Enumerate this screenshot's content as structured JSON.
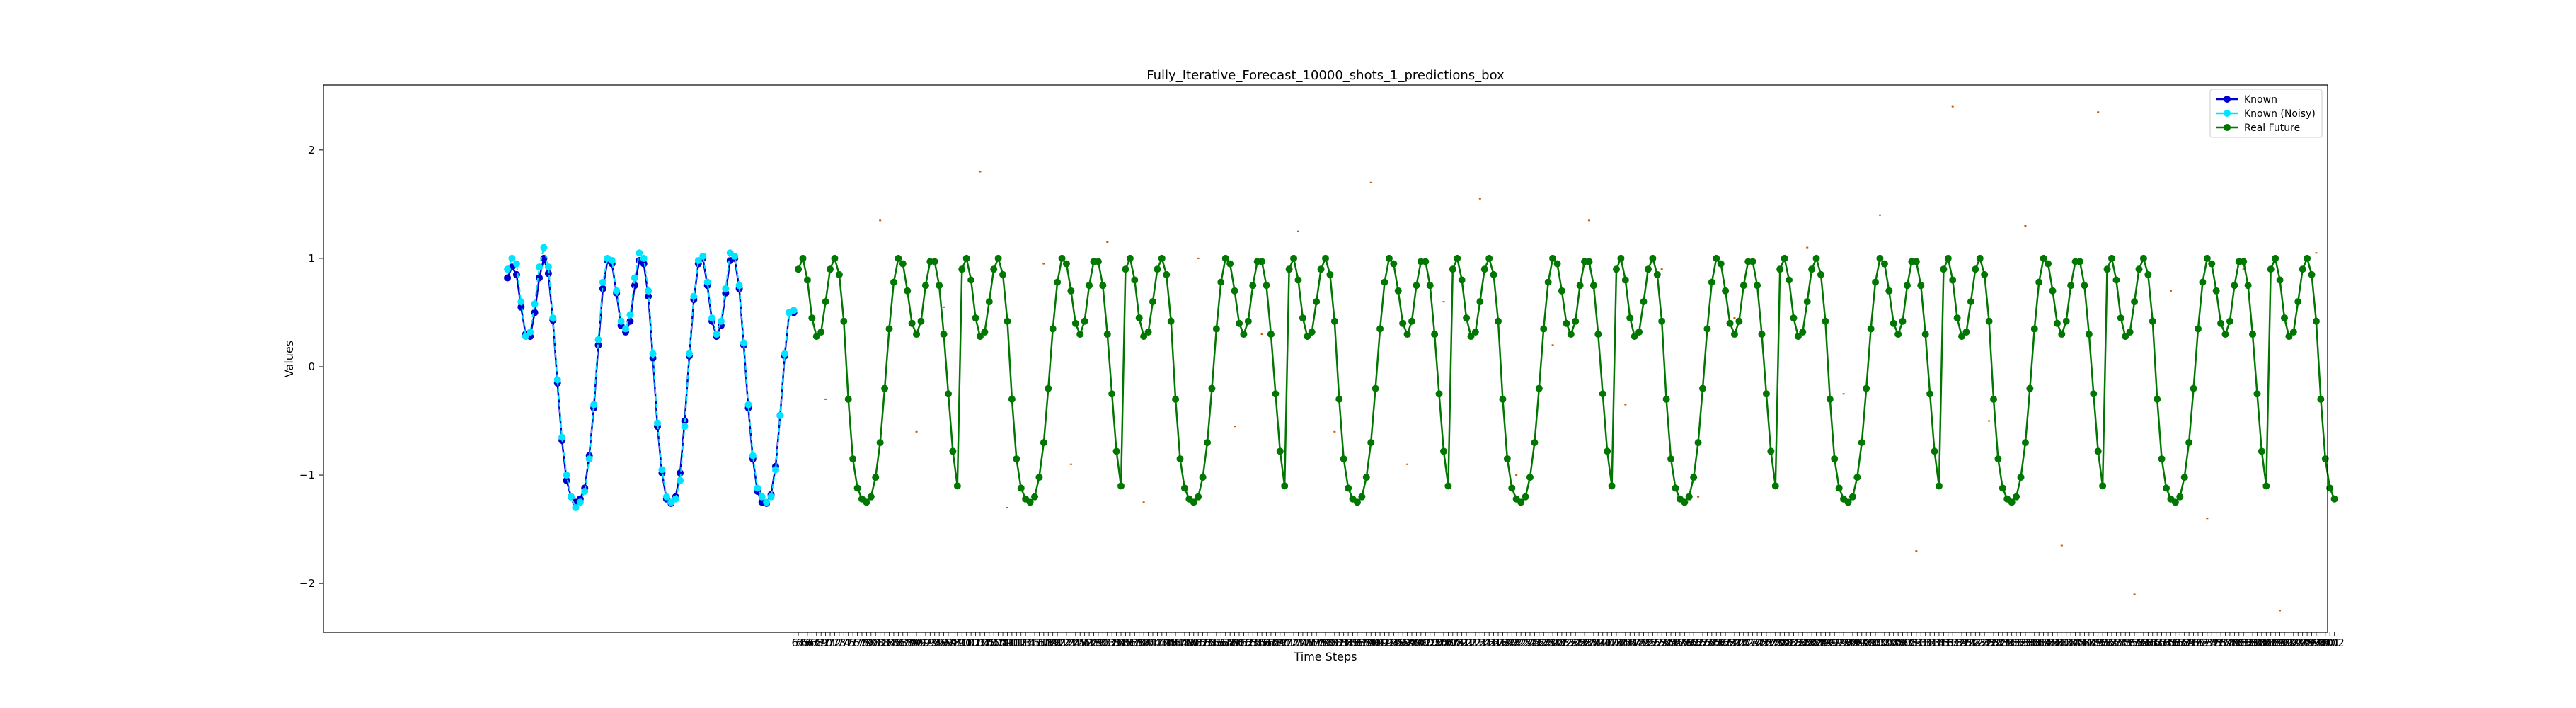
{
  "chart_data": {
    "type": "line",
    "title": "Fully_Iterative_Forecast_10000_shots_1_predictions_box",
    "xlabel": "Time Steps",
    "ylabel": "Values",
    "xlim": [
      -40.5,
      400.5
    ],
    "ylim": [
      -2.45,
      2.6
    ],
    "y_ticks": [
      -2,
      -1,
      0,
      1,
      2
    ],
    "x_tick_range": [
      64,
      402
    ],
    "grid": false,
    "legend_position": "top-right",
    "period_steps": 36,
    "known_range": [
      0,
      63
    ],
    "future_range": [
      64,
      402
    ],
    "known_values": [
      0.82,
      0.92,
      0.85,
      0.55,
      0.3,
      0.28,
      0.5,
      0.82,
      1.0,
      0.86,
      0.43,
      -0.15,
      -0.68,
      -1.05,
      -1.2,
      -1.25,
      -1.22,
      -1.12,
      -0.82,
      -0.38,
      0.2,
      0.72,
      0.98,
      0.95,
      0.68,
      0.38,
      0.32,
      0.42,
      0.75,
      0.98,
      0.95,
      0.65,
      0.08,
      -0.55,
      -0.98,
      -1.22,
      -1.26,
      -1.2,
      -0.98,
      -0.5,
      0.1,
      0.62,
      0.95,
      1.0,
      0.75,
      0.42,
      0.28,
      0.38,
      0.68,
      0.98,
      1.0,
      0.72,
      0.2,
      -0.38,
      -0.85,
      -1.15,
      -1.25,
      -1.26,
      -1.18,
      -0.92,
      -0.45,
      0.1,
      0.5,
      0.5
    ],
    "known_noisy_values": [
      0.9,
      1.0,
      0.95,
      0.6,
      0.28,
      0.32,
      0.58,
      0.92,
      1.1,
      0.92,
      0.45,
      -0.12,
      -0.65,
      -1.0,
      -1.2,
      -1.3,
      -1.25,
      -1.15,
      -0.85,
      -0.35,
      0.25,
      0.78,
      1.0,
      0.98,
      0.7,
      0.42,
      0.35,
      0.48,
      0.82,
      1.05,
      1.0,
      0.7,
      0.12,
      -0.52,
      -0.95,
      -1.2,
      -1.25,
      -1.22,
      -1.05,
      -0.55,
      0.12,
      0.65,
      0.98,
      1.02,
      0.78,
      0.45,
      0.3,
      0.42,
      0.72,
      1.05,
      1.02,
      0.75,
      0.22,
      -0.35,
      -0.82,
      -1.12,
      -1.2,
      -1.25,
      -1.2,
      -0.95,
      -0.45,
      0.12,
      0.5,
      0.52
    ],
    "real_future_pattern": [
      0.9,
      1.0,
      0.8,
      0.45,
      0.28,
      0.32,
      0.6,
      0.9,
      1.0,
      0.85,
      0.42,
      -0.3,
      -0.85,
      -1.12,
      -1.22,
      -1.25,
      -1.2,
      -1.02,
      -0.7,
      -0.2,
      0.35,
      0.78,
      1.0,
      0.95,
      0.7,
      0.4,
      0.3,
      0.42,
      0.75,
      0.97,
      0.97,
      0.75,
      0.3,
      -0.25,
      -0.78,
      -1.1
    ],
    "prediction_box_sample_x": [
      70,
      82,
      90,
      96,
      104,
      110,
      118,
      124,
      132,
      140,
      146,
      152,
      160,
      166,
      174,
      182,
      190,
      198,
      206,
      214,
      222,
      230,
      238,
      246,
      254,
      262,
      270,
      278,
      286,
      294,
      302,
      310,
      318,
      326,
      334,
      342,
      350,
      358,
      366,
      374,
      382,
      390,
      398
    ],
    "prediction_box_sample_y": [
      -0.3,
      1.35,
      -0.6,
      0.55,
      1.8,
      -1.3,
      0.95,
      -0.9,
      1.15,
      -1.25,
      0.45,
      1.0,
      -0.55,
      0.3,
      1.25,
      -0.6,
      1.7,
      -0.9,
      0.6,
      1.55,
      -1.0,
      0.2,
      1.35,
      -0.35,
      0.9,
      -1.2,
      0.45,
      -0.8,
      1.1,
      -0.25,
      1.4,
      -1.7,
      2.4,
      -0.5,
      1.3,
      -1.65,
      2.35,
      -2.1,
      0.7,
      -1.4,
      0.9,
      -2.25,
      1.05
    ],
    "series": [
      {
        "name": "Known",
        "color": "#0000cc",
        "marker": "circle"
      },
      {
        "name": "Known (Noisy)",
        "color": "#00e5ff",
        "marker": "circle"
      },
      {
        "name": "Real Future",
        "color": "#007700",
        "marker": "circle"
      }
    ],
    "prediction_color": "#cc5500"
  }
}
